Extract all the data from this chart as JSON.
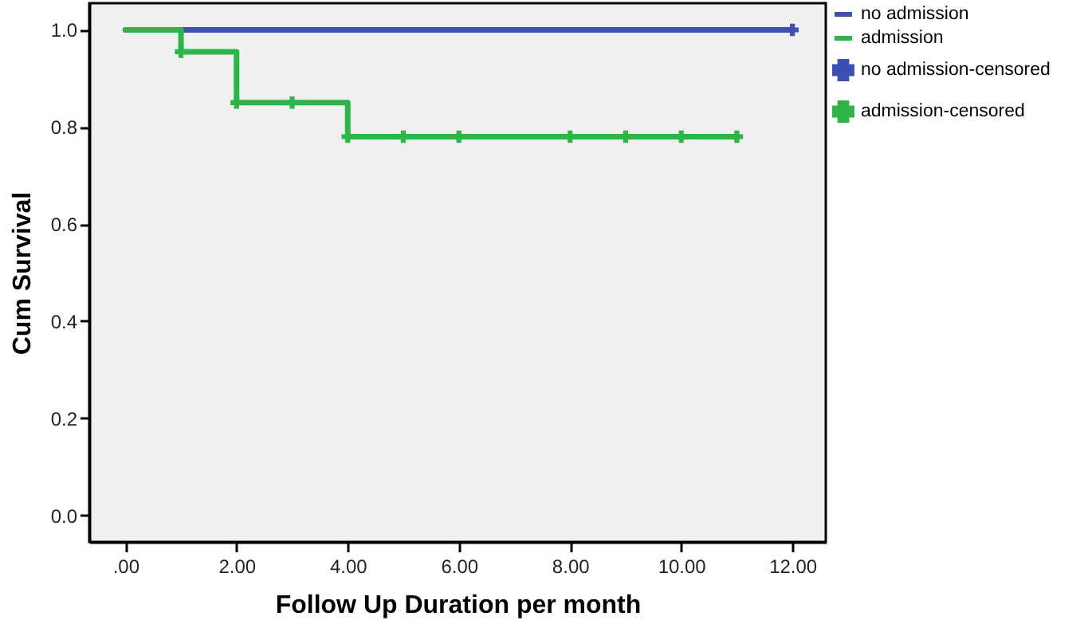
{
  "chart_data": {
    "type": "step",
    "xlabel": "Follow Up Duration per month",
    "ylabel": "Cum Survival",
    "xlim": [
      -0.65,
      12.6
    ],
    "ylim": [
      -0.055,
      1.055
    ],
    "xticks": [
      {
        "value": 0,
        "label": ".00"
      },
      {
        "value": 2,
        "label": "2.00"
      },
      {
        "value": 4,
        "label": "4.00"
      },
      {
        "value": 6,
        "label": "6.00"
      },
      {
        "value": 8,
        "label": "8.00"
      },
      {
        "value": 10,
        "label": "10.00"
      },
      {
        "value": 12,
        "label": "12.00"
      }
    ],
    "yticks": [
      {
        "value": 0,
        "label": "0.0"
      },
      {
        "value": 0.2,
        "label": "0.2"
      },
      {
        "value": 0.4,
        "label": "0.4"
      },
      {
        "value": 0.6,
        "label": "0.6"
      },
      {
        "value": 0.8,
        "label": "0.8"
      },
      {
        "value": 1,
        "label": "1.0"
      }
    ],
    "legend": "right",
    "series": [
      {
        "name": "no admission",
        "color": "#3c50b4",
        "x": [
          0,
          12
        ],
        "values": [
          1,
          1
        ]
      },
      {
        "name": "admission",
        "color": "#2fb44a",
        "x": [
          0,
          1,
          2,
          4,
          11
        ],
        "values": [
          1,
          0.955,
          0.85,
          0.78,
          0.78
        ]
      },
      {
        "name": "no admission-censored",
        "type": "scatter",
        "marker": "cross",
        "color": "#3c50b4",
        "x": [
          12
        ],
        "values": [
          1
        ]
      },
      {
        "name": "admission-censored",
        "type": "scatter",
        "marker": "cross",
        "color": "#2fb44a",
        "x": [
          1,
          2,
          3,
          4,
          5,
          6,
          8,
          9,
          10,
          11
        ],
        "values": [
          0.955,
          0.85,
          0.85,
          0.78,
          0.78,
          0.78,
          0.78,
          0.78,
          0.78,
          0.78
        ]
      }
    ]
  }
}
